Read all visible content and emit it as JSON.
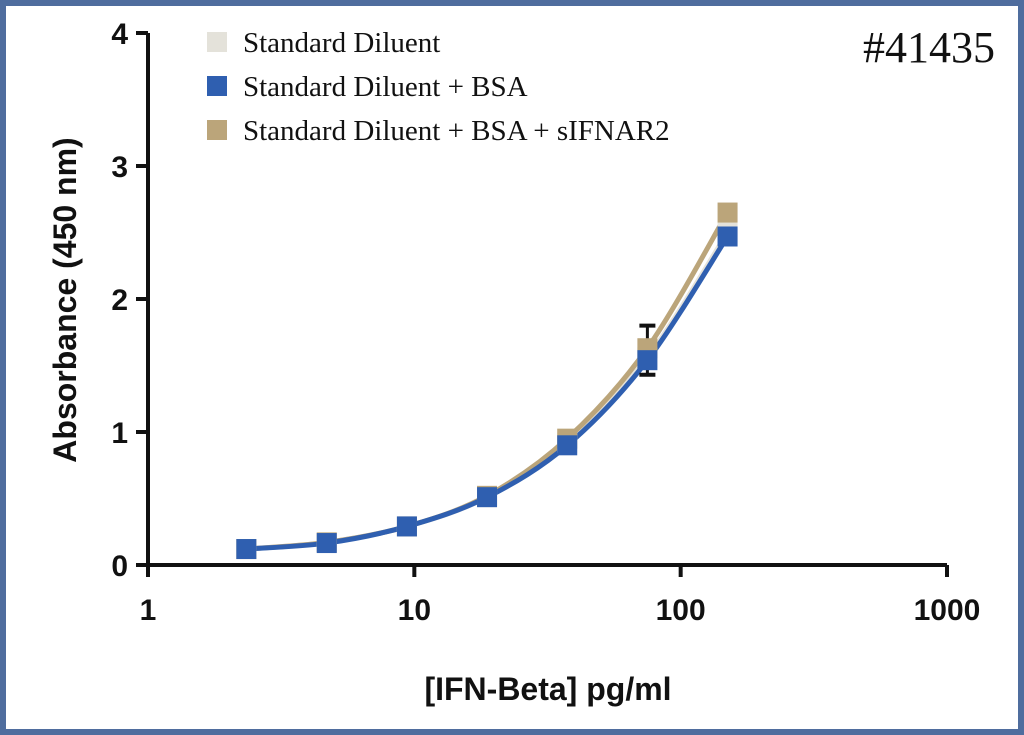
{
  "chart_data": {
    "type": "line",
    "catalog_label": "#41435",
    "xlabel": "[IFN-Beta] pg/ml",
    "ylabel": "Absorbance (450 nm)",
    "xscale": "log",
    "xlim": [
      1,
      1000
    ],
    "ylim": [
      0,
      4
    ],
    "xticks": [
      "1",
      "10",
      "100",
      "1000"
    ],
    "yticks": [
      "0",
      "1",
      "2",
      "3",
      "4"
    ],
    "grid": false,
    "legend_position": "top-left",
    "x": [
      2.34,
      4.69,
      9.38,
      18.75,
      37.5,
      75,
      150
    ],
    "series": [
      {
        "name": "Standard Diluent",
        "color": "#e4e2da",
        "values": [
          0.12,
          0.17,
          0.29,
          0.51,
          0.92,
          1.56,
          2.5
        ]
      },
      {
        "name": "Standard Diluent + BSA + sIFNAR2",
        "color": "#bba57a",
        "values": [
          0.12,
          0.17,
          0.29,
          0.52,
          0.95,
          1.63,
          2.65
        ],
        "error": [
          0,
          0,
          0,
          0,
          0,
          0.17,
          0
        ]
      },
      {
        "name": "Standard Diluent + BSA",
        "color": "#2f5fb0",
        "values": [
          0.12,
          0.165,
          0.29,
          0.51,
          0.9,
          1.54,
          2.47
        ],
        "error": [
          0,
          0,
          0,
          0,
          0,
          0.11,
          0
        ]
      }
    ],
    "legend_order": [
      0,
      2,
      1
    ]
  }
}
